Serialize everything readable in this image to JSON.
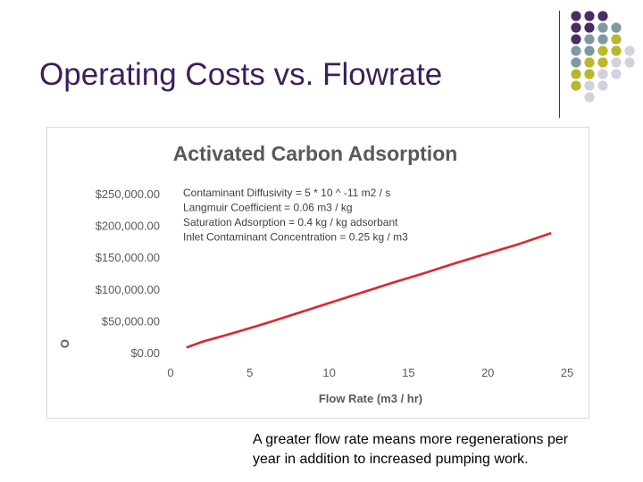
{
  "slide": {
    "title": "Operating Costs vs. Flowrate",
    "caption_lines": [
      "A greater flow rate means more regenerations per",
      "year in addition to increased pumping work."
    ]
  },
  "decor": {
    "dot_colors": [
      "#4a2d64",
      "#7d9aa1",
      "#b7b82a",
      "#d2d2dc"
    ]
  },
  "chart_data": {
    "type": "line",
    "title": "Activated Carbon Adsorption",
    "xlabel": "Flow Rate (m3 / hr)",
    "ylabel": "O",
    "xlim": [
      0,
      25
    ],
    "ylim": [
      0,
      250000
    ],
    "x_ticks": [
      "0",
      "5",
      "10",
      "15",
      "20",
      "25"
    ],
    "x_tick_values": [
      0,
      5,
      10,
      15,
      20,
      25
    ],
    "y_ticks": [
      "$0.00",
      "$50,000.00",
      "$100,000.00",
      "$150,000.00",
      "$200,000.00",
      "$250,000.00"
    ],
    "y_tick_values": [
      0,
      50000,
      100000,
      150000,
      200000,
      250000
    ],
    "grid": false,
    "annotations": [
      "Contaminant Diffusivity = 5 * 10 ^ -11 m2 / s",
      "Langmuir Coefficient = 0.06 m3 / kg",
      "Saturation Adsorption = 0.4 kg / kg adsorbant",
      "Inlet Contaminant Concentration = 0.25 kg / m3"
    ],
    "series": [
      {
        "color": "#e0262a",
        "x": [
          1,
          2,
          4,
          6,
          8,
          10,
          12,
          14,
          16,
          18,
          20,
          22,
          24
        ],
        "y": [
          8000,
          17000,
          31000,
          46000,
          62000,
          78000,
          94000,
          110000,
          125000,
          141000,
          156000,
          171000,
          188000
        ]
      }
    ]
  }
}
